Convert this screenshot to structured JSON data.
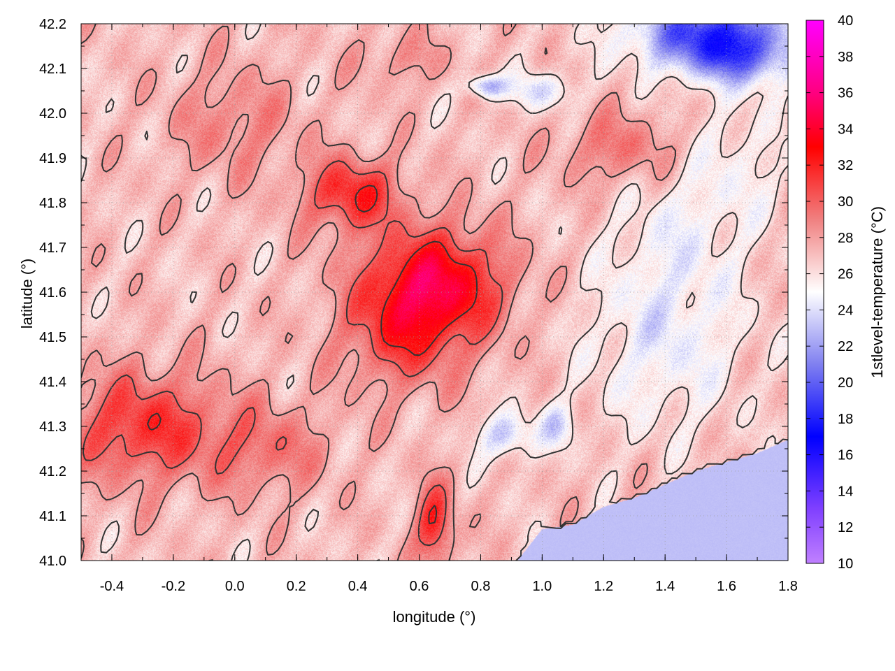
{
  "chart_data": {
    "type": "heatmap",
    "title": "",
    "xlabel": "longitude (°)",
    "ylabel": "latitude (°)",
    "colorbar_label": "1stlevel-temperature (°C)",
    "xlim": [
      -0.5,
      1.8
    ],
    "ylim": [
      41.0,
      42.2
    ],
    "clim": [
      10,
      40
    ],
    "x_ticks": [
      -0.4,
      -0.2,
      0.0,
      0.2,
      0.4,
      0.6,
      0.8,
      1.0,
      1.2,
      1.4,
      1.6,
      1.8
    ],
    "x_tick_labels": [
      "-0.4",
      "-0.2",
      "0.0",
      "0.2",
      "0.4",
      "0.6",
      "0.8",
      "1.0",
      "1.2",
      "1.4",
      "1.6",
      "1.8"
    ],
    "y_ticks": [
      41.0,
      41.1,
      41.2,
      41.3,
      41.4,
      41.5,
      41.6,
      41.7,
      41.8,
      41.9,
      42.0,
      42.1,
      42.2
    ],
    "y_tick_labels": [
      "41.0",
      "41.1",
      "41.2",
      "41.3",
      "41.4",
      "41.5",
      "41.6",
      "41.7",
      "41.8",
      "41.9",
      "42.0",
      "42.1",
      "42.2"
    ],
    "colorbar_ticks": [
      10,
      12,
      14,
      16,
      18,
      20,
      22,
      24,
      26,
      28,
      30,
      32,
      34,
      36,
      38,
      40
    ],
    "colorbar_tick_labels": [
      "10",
      "12",
      "14",
      "16",
      "18",
      "20",
      "22",
      "24",
      "26",
      "28",
      "30",
      "32",
      "34",
      "36",
      "38",
      "40"
    ],
    "colormap": [
      {
        "v": 10,
        "color": "#c080ff"
      },
      {
        "v": 13,
        "color": "#8040ff"
      },
      {
        "v": 17,
        "color": "#0000ff"
      },
      {
        "v": 21,
        "color": "#8080f0"
      },
      {
        "v": 25,
        "color": "#ffffff"
      },
      {
        "v": 29,
        "color": "#f08080"
      },
      {
        "v": 33,
        "color": "#ff0000"
      },
      {
        "v": 36,
        "color": "#ff0080"
      },
      {
        "v": 40,
        "color": "#ff00ff"
      }
    ],
    "grid": true,
    "contours": true,
    "contour_color": "#333333",
    "sea_temperature": 23,
    "coastline": [
      [
        0.92,
        41.0
      ],
      [
        1.0,
        41.07
      ],
      [
        1.1,
        41.08
      ],
      [
        1.2,
        41.12
      ],
      [
        1.3,
        41.14
      ],
      [
        1.4,
        41.17
      ],
      [
        1.5,
        41.2
      ],
      [
        1.6,
        41.22
      ],
      [
        1.7,
        41.24
      ],
      [
        1.8,
        41.27
      ]
    ],
    "field_features": [
      {
        "lon": 0.65,
        "lat": 41.62,
        "sx": 0.22,
        "sy": 0.12,
        "amp": 7
      },
      {
        "lon": 0.38,
        "lat": 41.82,
        "sx": 0.15,
        "sy": 0.08,
        "amp": 5
      },
      {
        "lon": 0.55,
        "lat": 41.5,
        "sx": 0.2,
        "sy": 0.12,
        "amp": 3.5
      },
      {
        "lon": -0.3,
        "lat": 41.3,
        "sx": 0.25,
        "sy": 0.12,
        "amp": 4.5
      },
      {
        "lon": 0.1,
        "lat": 41.25,
        "sx": 0.2,
        "sy": 0.1,
        "amp": 2.5
      },
      {
        "lon": 0.65,
        "lat": 41.08,
        "sx": 0.06,
        "sy": 0.09,
        "amp": 5
      },
      {
        "lon": 1.25,
        "lat": 41.92,
        "sx": 0.18,
        "sy": 0.08,
        "amp": 2.5
      },
      {
        "lon": 1.55,
        "lat": 42.18,
        "sx": 0.25,
        "sy": 0.08,
        "amp": -8
      },
      {
        "lon": 1.65,
        "lat": 42.12,
        "sx": 0.18,
        "sy": 0.06,
        "amp": -4
      },
      {
        "lon": 0.82,
        "lat": 42.06,
        "sx": 0.06,
        "sy": 0.025,
        "amp": -5
      },
      {
        "lon": 1.0,
        "lat": 42.05,
        "sx": 0.1,
        "sy": 0.04,
        "amp": -3
      },
      {
        "lon": 0.88,
        "lat": 41.28,
        "sx": 0.08,
        "sy": 0.05,
        "amp": -4
      },
      {
        "lon": 1.05,
        "lat": 41.3,
        "sx": 0.06,
        "sy": 0.05,
        "amp": -3
      },
      {
        "lon": 1.4,
        "lat": 41.5,
        "sx": 0.25,
        "sy": 0.2,
        "amp": -2.5
      },
      {
        "lon": 1.45,
        "lat": 41.75,
        "sx": 0.2,
        "sy": 0.15,
        "amp": -1.5
      },
      {
        "lon": 1.65,
        "lat": 41.9,
        "sx": 0.15,
        "sy": 0.15,
        "amp": -1.5
      },
      {
        "lon": 0.0,
        "lat": 41.98,
        "sx": 0.2,
        "sy": 0.12,
        "amp": 2
      },
      {
        "lon": 0.55,
        "lat": 42.12,
        "sx": 0.15,
        "sy": 0.06,
        "amp": 1.5
      }
    ],
    "field_base": 27,
    "contour_levels": [
      26,
      28,
      30,
      32
    ]
  }
}
